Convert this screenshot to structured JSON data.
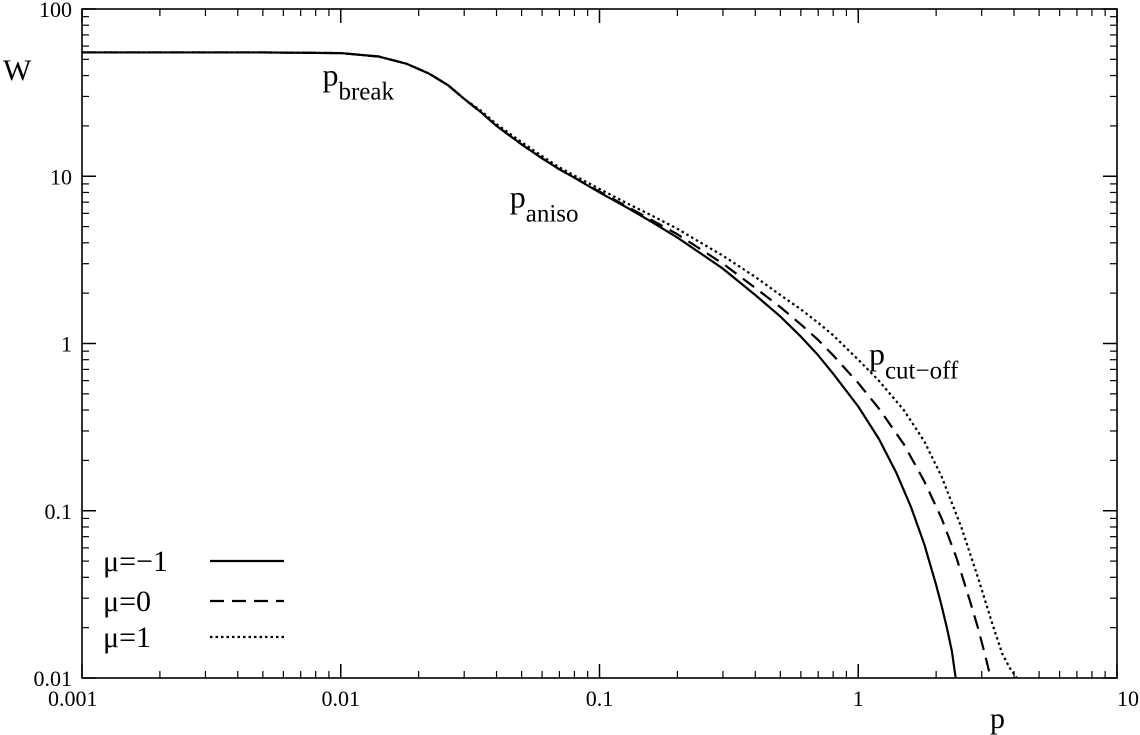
{
  "chart_data": {
    "type": "line",
    "title": "",
    "xlabel": "p",
    "ylabel": "W",
    "xscale": "log",
    "yscale": "log",
    "xlim": [
      0.001,
      10
    ],
    "ylim": [
      0.01,
      100
    ],
    "grid": false,
    "legend_position": "bottom-left",
    "x_ticks": [
      "0.001",
      "0.01",
      "0.1",
      "1",
      "10"
    ],
    "y_ticks": [
      "0.01",
      "0.1",
      "1",
      "10",
      "100"
    ],
    "annotations": [
      {
        "main": "p",
        "sub": "break",
        "x": 0.0085,
        "y": 35
      },
      {
        "main": "p",
        "sub": "aniso",
        "x": 0.045,
        "y": 6.5
      },
      {
        "main": "p",
        "sub": "cut−off",
        "x": 1.1,
        "y": 0.75
      }
    ],
    "series": [
      {
        "name": "μ=−1",
        "style": "solid",
        "x": [
          0.001,
          0.005,
          0.01,
          0.014,
          0.018,
          0.022,
          0.026,
          0.03,
          0.035,
          0.04,
          0.05,
          0.06,
          0.07,
          0.08,
          0.1,
          0.13,
          0.16,
          0.2,
          0.25,
          0.3,
          0.4,
          0.5,
          0.6,
          0.7,
          0.8,
          1.0,
          1.2,
          1.4,
          1.6,
          1.8,
          2.0,
          2.1,
          2.2,
          2.3,
          2.38
        ],
        "y": [
          55,
          55,
          54.5,
          52,
          47,
          41,
          35,
          29,
          24,
          20,
          15.5,
          12.8,
          11,
          9.8,
          8.0,
          6.4,
          5.3,
          4.3,
          3.4,
          2.8,
          1.95,
          1.45,
          1.1,
          0.85,
          0.66,
          0.42,
          0.27,
          0.17,
          0.105,
          0.063,
          0.036,
          0.027,
          0.02,
          0.0145,
          0.01
        ]
      },
      {
        "name": "μ=0",
        "style": "dashed",
        "x": [
          0.001,
          0.005,
          0.01,
          0.014,
          0.018,
          0.022,
          0.026,
          0.03,
          0.035,
          0.04,
          0.05,
          0.06,
          0.07,
          0.08,
          0.1,
          0.13,
          0.16,
          0.2,
          0.25,
          0.3,
          0.4,
          0.5,
          0.6,
          0.7,
          0.8,
          1.0,
          1.2,
          1.5,
          1.8,
          2.1,
          2.4,
          2.7,
          2.9,
          3.1,
          3.25
        ],
        "y": [
          55,
          55,
          54.5,
          52,
          47,
          41,
          35,
          29,
          24,
          20,
          15.5,
          12.8,
          11,
          9.8,
          8.1,
          6.5,
          5.45,
          4.5,
          3.6,
          3.0,
          2.15,
          1.65,
          1.3,
          1.05,
          0.85,
          0.58,
          0.41,
          0.25,
          0.15,
          0.09,
          0.052,
          0.029,
          0.02,
          0.0135,
          0.01
        ]
      },
      {
        "name": "μ=1",
        "style": "dotted",
        "x": [
          0.001,
          0.005,
          0.01,
          0.014,
          0.018,
          0.022,
          0.026,
          0.03,
          0.035,
          0.04,
          0.05,
          0.06,
          0.07,
          0.08,
          0.1,
          0.13,
          0.16,
          0.2,
          0.25,
          0.3,
          0.4,
          0.5,
          0.6,
          0.7,
          0.8,
          1.0,
          1.2,
          1.5,
          1.8,
          2.1,
          2.5,
          2.9,
          3.3,
          3.6,
          3.85,
          4.1
        ],
        "y": [
          55,
          55,
          54.5,
          52,
          47,
          41,
          35,
          29,
          24.5,
          20.5,
          16,
          13.2,
          11.3,
          10.1,
          8.4,
          6.8,
          5.8,
          4.85,
          3.95,
          3.35,
          2.5,
          1.95,
          1.6,
          1.33,
          1.12,
          0.8,
          0.6,
          0.4,
          0.26,
          0.16,
          0.08,
          0.04,
          0.021,
          0.014,
          0.0115,
          0.01
        ]
      }
    ]
  }
}
